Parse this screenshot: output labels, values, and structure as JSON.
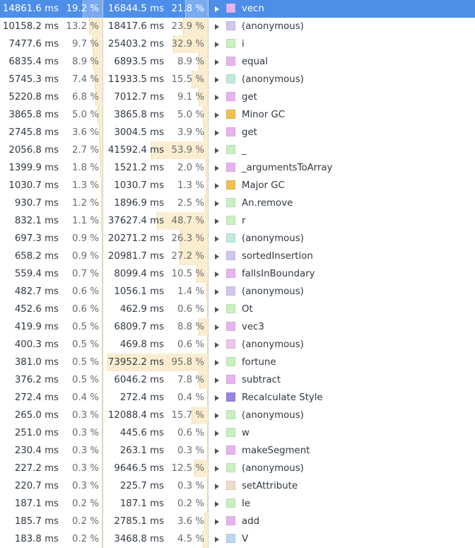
{
  "rows": [
    {
      "self_ms": "14861.6 ms",
      "self_pct": "19.2 %",
      "self_frac": 0.192,
      "total_ms": "16844.5 ms",
      "total_pct": "21.8 %",
      "total_frac": 0.218,
      "name": "vecn",
      "color": "#e8b4f0",
      "selected": true
    },
    {
      "self_ms": "10158.2 ms",
      "self_pct": "13.2 %",
      "self_frac": 0.132,
      "total_ms": "18417.6 ms",
      "total_pct": "23.9 %",
      "total_frac": 0.239,
      "name": "(anonymous)",
      "color": "#d2c6ee",
      "selected": false
    },
    {
      "self_ms": "7477.6 ms",
      "self_pct": "9.7 %",
      "self_frac": 0.097,
      "total_ms": "25403.2 ms",
      "total_pct": "32.9 %",
      "total_frac": 0.329,
      "name": "i",
      "color": "#c8f0c0",
      "selected": false
    },
    {
      "self_ms": "6835.4 ms",
      "self_pct": "8.9 %",
      "self_frac": 0.089,
      "total_ms": "6893.5 ms",
      "total_pct": "8.9 %",
      "total_frac": 0.089,
      "name": "equal",
      "color": "#e8b4f0",
      "selected": false
    },
    {
      "self_ms": "5745.3 ms",
      "self_pct": "7.4 %",
      "self_frac": 0.074,
      "total_ms": "11933.5 ms",
      "total_pct": "15.5 %",
      "total_frac": 0.155,
      "name": "(anonymous)",
      "color": "#c2ead8",
      "selected": false
    },
    {
      "self_ms": "5220.8 ms",
      "self_pct": "6.8 %",
      "self_frac": 0.068,
      "total_ms": "7012.7 ms",
      "total_pct": "9.1 %",
      "total_frac": 0.091,
      "name": "get",
      "color": "#e8b4f0",
      "selected": false
    },
    {
      "self_ms": "3865.8 ms",
      "self_pct": "5.0 %",
      "self_frac": 0.05,
      "total_ms": "3865.8 ms",
      "total_pct": "5.0 %",
      "total_frac": 0.05,
      "name": "Minor GC",
      "color": "#f0c050",
      "selected": false
    },
    {
      "self_ms": "2745.8 ms",
      "self_pct": "3.6 %",
      "self_frac": 0.036,
      "total_ms": "3004.5 ms",
      "total_pct": "3.9 %",
      "total_frac": 0.039,
      "name": "get",
      "color": "#e8b4f0",
      "selected": false
    },
    {
      "self_ms": "2056.8 ms",
      "self_pct": "2.7 %",
      "self_frac": 0.027,
      "total_ms": "41592.4 ms",
      "total_pct": "53.9 %",
      "total_frac": 0.539,
      "name": "_",
      "color": "#c8f0c0",
      "selected": false
    },
    {
      "self_ms": "1399.9 ms",
      "self_pct": "1.8 %",
      "self_frac": 0.018,
      "total_ms": "1521.2 ms",
      "total_pct": "2.0 %",
      "total_frac": 0.02,
      "name": "_argumentsToArray",
      "color": "#e8b4f0",
      "selected": false
    },
    {
      "self_ms": "1030.7 ms",
      "self_pct": "1.3 %",
      "self_frac": 0.013,
      "total_ms": "1030.7 ms",
      "total_pct": "1.3 %",
      "total_frac": 0.013,
      "name": "Major GC",
      "color": "#f0c050",
      "selected": false
    },
    {
      "self_ms": "930.7 ms",
      "self_pct": "1.2 %",
      "self_frac": 0.012,
      "total_ms": "1896.9 ms",
      "total_pct": "2.5 %",
      "total_frac": 0.025,
      "name": "An.remove",
      "color": "#c8f0c0",
      "selected": false
    },
    {
      "self_ms": "832.1 ms",
      "self_pct": "1.1 %",
      "self_frac": 0.011,
      "total_ms": "37627.4 ms",
      "total_pct": "48.7 %",
      "total_frac": 0.487,
      "name": "r",
      "color": "#c8f0c0",
      "selected": false
    },
    {
      "self_ms": "697.3 ms",
      "self_pct": "0.9 %",
      "self_frac": 0.009,
      "total_ms": "20271.2 ms",
      "total_pct": "26.3 %",
      "total_frac": 0.263,
      "name": "(anonymous)",
      "color": "#c2ead8",
      "selected": false
    },
    {
      "self_ms": "658.2 ms",
      "self_pct": "0.9 %",
      "self_frac": 0.009,
      "total_ms": "20981.7 ms",
      "total_pct": "27.2 %",
      "total_frac": 0.272,
      "name": "sortedInsertion",
      "color": "#d2c6ee",
      "selected": false
    },
    {
      "self_ms": "559.4 ms",
      "self_pct": "0.7 %",
      "self_frac": 0.007,
      "total_ms": "8099.4 ms",
      "total_pct": "10.5 %",
      "total_frac": 0.105,
      "name": "fallsInBoundary",
      "color": "#e8b4f0",
      "selected": false
    },
    {
      "self_ms": "482.7 ms",
      "self_pct": "0.6 %",
      "self_frac": 0.006,
      "total_ms": "1056.1 ms",
      "total_pct": "1.4 %",
      "total_frac": 0.014,
      "name": "(anonymous)",
      "color": "#d2c6ee",
      "selected": false
    },
    {
      "self_ms": "452.6 ms",
      "self_pct": "0.6 %",
      "self_frac": 0.006,
      "total_ms": "462.9 ms",
      "total_pct": "0.6 %",
      "total_frac": 0.006,
      "name": "Ot",
      "color": "#c8f0c0",
      "selected": false
    },
    {
      "self_ms": "419.9 ms",
      "self_pct": "0.5 %",
      "self_frac": 0.005,
      "total_ms": "6809.7 ms",
      "total_pct": "8.8 %",
      "total_frac": 0.088,
      "name": "vec3",
      "color": "#e8b4f0",
      "selected": false
    },
    {
      "self_ms": "400.3 ms",
      "self_pct": "0.5 %",
      "self_frac": 0.005,
      "total_ms": "469.8 ms",
      "total_pct": "0.6 %",
      "total_frac": 0.006,
      "name": "(anonymous)",
      "color": "#ecc6e6",
      "selected": false
    },
    {
      "self_ms": "381.0 ms",
      "self_pct": "0.5 %",
      "self_frac": 0.005,
      "total_ms": "73952.2 ms",
      "total_pct": "95.8 %",
      "total_frac": 0.958,
      "name": "fortune",
      "color": "#c8f0c0",
      "selected": false
    },
    {
      "self_ms": "376.2 ms",
      "self_pct": "0.5 %",
      "self_frac": 0.005,
      "total_ms": "6046.2 ms",
      "total_pct": "7.8 %",
      "total_frac": 0.078,
      "name": "subtract",
      "color": "#e8b4f0",
      "selected": false
    },
    {
      "self_ms": "272.4 ms",
      "self_pct": "0.4 %",
      "self_frac": 0.004,
      "total_ms": "272.4 ms",
      "total_pct": "0.4 %",
      "total_frac": 0.004,
      "name": "Recalculate Style",
      "color": "#9b84e0",
      "selected": false
    },
    {
      "self_ms": "265.0 ms",
      "self_pct": "0.3 %",
      "self_frac": 0.003,
      "total_ms": "12088.4 ms",
      "total_pct": "15.7 %",
      "total_frac": 0.157,
      "name": "(anonymous)",
      "color": "#c8f0c0",
      "selected": false
    },
    {
      "self_ms": "251.0 ms",
      "self_pct": "0.3 %",
      "self_frac": 0.003,
      "total_ms": "445.6 ms",
      "total_pct": "0.6 %",
      "total_frac": 0.006,
      "name": "w",
      "color": "#c8f0c0",
      "selected": false
    },
    {
      "self_ms": "230.4 ms",
      "self_pct": "0.3 %",
      "self_frac": 0.003,
      "total_ms": "263.1 ms",
      "total_pct": "0.3 %",
      "total_frac": 0.003,
      "name": "makeSegment",
      "color": "#e8b4f0",
      "selected": false
    },
    {
      "self_ms": "227.2 ms",
      "self_pct": "0.3 %",
      "self_frac": 0.003,
      "total_ms": "9646.5 ms",
      "total_pct": "12.5 %",
      "total_frac": 0.125,
      "name": "(anonymous)",
      "color": "#c8f0c0",
      "selected": false
    },
    {
      "self_ms": "220.7 ms",
      "self_pct": "0.3 %",
      "self_frac": 0.003,
      "total_ms": "225.7 ms",
      "total_pct": "0.3 %",
      "total_frac": 0.003,
      "name": "setAttribute",
      "color": "#f0dcc8",
      "selected": false
    },
    {
      "self_ms": "187.1 ms",
      "self_pct": "0.2 %",
      "self_frac": 0.002,
      "total_ms": "187.1 ms",
      "total_pct": "0.2 %",
      "total_frac": 0.002,
      "name": "Ie",
      "color": "#c8f0c0",
      "selected": false
    },
    {
      "self_ms": "185.7 ms",
      "self_pct": "0.2 %",
      "self_frac": 0.002,
      "total_ms": "2785.1 ms",
      "total_pct": "3.6 %",
      "total_frac": 0.036,
      "name": "add",
      "color": "#e8b4f0",
      "selected": false
    },
    {
      "self_ms": "183.8 ms",
      "self_pct": "0.2 %",
      "self_frac": 0.002,
      "total_ms": "3468.8 ms",
      "total_pct": "4.5 %",
      "total_frac": 0.045,
      "name": "V",
      "color": "#bcd8f0",
      "selected": false
    }
  ]
}
